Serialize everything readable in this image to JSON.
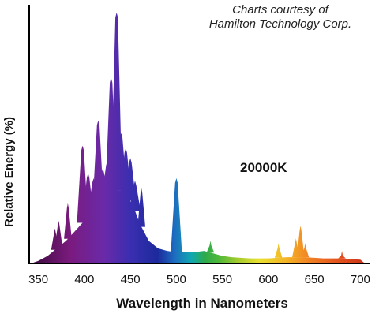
{
  "chart_data": {
    "type": "area",
    "title": "",
    "credit": [
      "Charts courtesy of",
      "Hamilton Technology Corp."
    ],
    "annotation": "20000K",
    "xlabel": "Wavelength in Nanometers",
    "ylabel": "Relative Energy (%)",
    "xlim": [
      340,
      710
    ],
    "ylim": [
      0,
      100
    ],
    "xticks": [
      "350",
      "400",
      "450",
      "500",
      "550",
      "600",
      "650",
      "700"
    ],
    "grid": false,
    "legend": "none",
    "baseline": [
      [
        342,
        0
      ],
      [
        350,
        1
      ],
      [
        360,
        3
      ],
      [
        370,
        6
      ],
      [
        380,
        9
      ],
      [
        390,
        13
      ],
      [
        400,
        17
      ],
      [
        410,
        21
      ],
      [
        420,
        25
      ],
      [
        430,
        29
      ],
      [
        440,
        29
      ],
      [
        450,
        25
      ],
      [
        455,
        21
      ],
      [
        460,
        16
      ],
      [
        470,
        9
      ],
      [
        480,
        6
      ],
      [
        490,
        5
      ],
      [
        500,
        4.5
      ],
      [
        510,
        4.5
      ],
      [
        520,
        4.5
      ],
      [
        530,
        5
      ],
      [
        540,
        4
      ],
      [
        550,
        3
      ],
      [
        560,
        2.5
      ],
      [
        580,
        2
      ],
      [
        600,
        2
      ],
      [
        620,
        2.5
      ],
      [
        640,
        2.5
      ],
      [
        660,
        2
      ],
      [
        680,
        2
      ],
      [
        700,
        1.5
      ],
      [
        705,
        0
      ]
    ],
    "peaks": [
      {
        "x": 368,
        "y": 14
      },
      {
        "x": 372,
        "y": 17
      },
      {
        "x": 382,
        "y": 24
      },
      {
        "x": 398,
        "y": 47
      },
      {
        "x": 404,
        "y": 36
      },
      {
        "x": 410,
        "y": 34
      },
      {
        "x": 415,
        "y": 57
      },
      {
        "x": 420,
        "y": 38
      },
      {
        "x": 425,
        "y": 41
      },
      {
        "x": 429,
        "y": 74
      },
      {
        "x": 432,
        "y": 60
      },
      {
        "x": 435,
        "y": 100
      },
      {
        "x": 440,
        "y": 52
      },
      {
        "x": 445,
        "y": 46
      },
      {
        "x": 450,
        "y": 42
      },
      {
        "x": 455,
        "y": 33
      },
      {
        "x": 462,
        "y": 30
      },
      {
        "x": 500,
        "y": 34
      },
      {
        "x": 537,
        "y": 9
      },
      {
        "x": 611,
        "y": 8
      },
      {
        "x": 630,
        "y": 10
      },
      {
        "x": 635,
        "y": 15
      },
      {
        "x": 640,
        "y": 8
      },
      {
        "x": 680,
        "y": 5
      }
    ]
  }
}
